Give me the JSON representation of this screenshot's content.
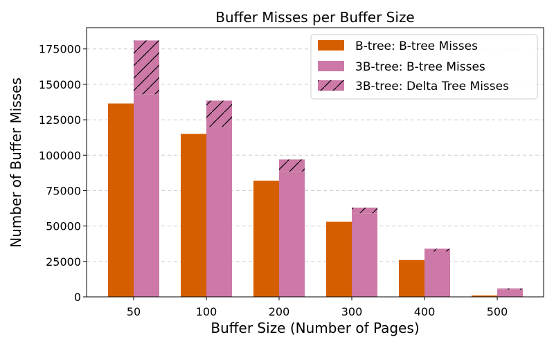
{
  "chart_data": {
    "type": "bar",
    "title": "Buffer Misses per Buffer Size",
    "xlabel": "Buffer Size (Number of Pages)",
    "ylabel": "Number of Buffer Misses",
    "categories": [
      "50",
      "100",
      "200",
      "300",
      "400",
      "500"
    ],
    "ylim": [
      0,
      190000
    ],
    "yticks": [
      "0",
      "25000",
      "50000",
      "75000",
      "100000",
      "125000",
      "150000",
      "175000"
    ],
    "grid": "horizontal dashed",
    "legend_position": "top-right",
    "colors": {
      "btree": "#d55e00",
      "threeb": "#cc79a7",
      "grid": "#cccccc"
    },
    "series": [
      {
        "name": "B-tree: B-tree Misses",
        "values": [
          136500,
          115000,
          82000,
          53000,
          26000,
          1000
        ]
      },
      {
        "name": "3B-tree: B-tree Misses",
        "values": [
          143000,
          120000,
          88500,
          59000,
          32000,
          5000
        ],
        "stack": "3B-tree"
      },
      {
        "name": "3B-tree: Delta Tree Misses",
        "values": [
          38000,
          18500,
          8500,
          4000,
          2000,
          1000
        ],
        "stack": "3B-tree",
        "pattern": "hatch"
      }
    ]
  }
}
